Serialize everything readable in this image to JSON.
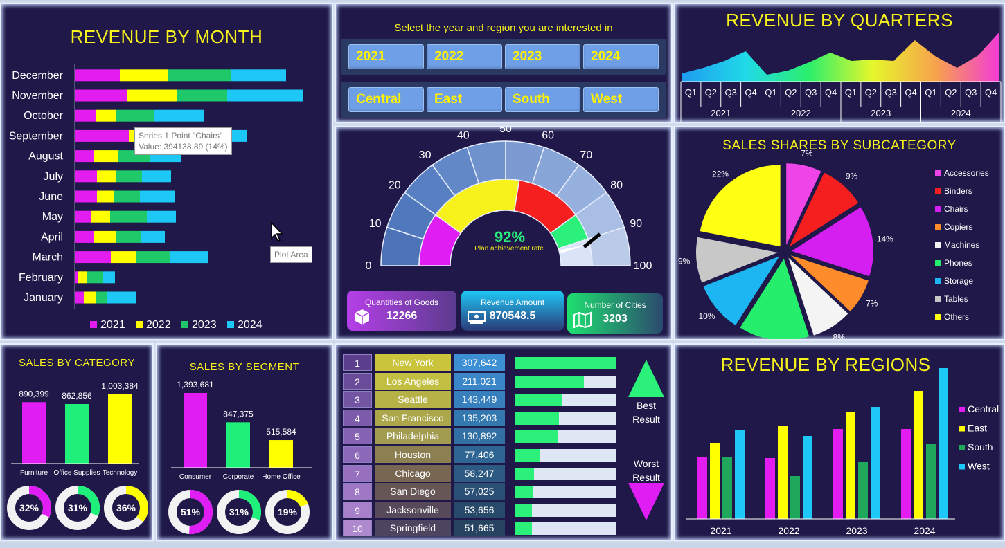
{
  "month_panel": {
    "title": "REVENUE BY MONTH",
    "tooltip_line1": "Series 1 Point \"Chairs\"",
    "tooltip_line2": "Value: 394138.89 (14%)",
    "plot_area_tip": "Plot Area"
  },
  "filters": {
    "prompt": "Select the year and region you are interested in",
    "years": [
      "2021",
      "2022",
      "2023",
      "2024"
    ],
    "regions": [
      "Central",
      "East",
      "South",
      "West"
    ]
  },
  "quarters_panel": {
    "title": "REVENUE BY QUARTERS",
    "quarter_labels": [
      "Q1",
      "Q2",
      "Q3",
      "Q4"
    ],
    "years": [
      "2021",
      "2022",
      "2023",
      "2024"
    ]
  },
  "gauge": {
    "ticks": [
      "0",
      "10",
      "20",
      "30",
      "40",
      "50",
      "60",
      "70",
      "80",
      "90",
      "100"
    ],
    "value_text": "92%",
    "caption": "Plan achievement rate",
    "value": 92
  },
  "kpis": {
    "qty_label": "Quantities of Goods",
    "qty_value": "12266",
    "rev_label": "Revenue Amount",
    "rev_value": "870548.5",
    "cities_label": "Number of Cities",
    "cities_value": "3203"
  },
  "subcat_panel": {
    "title": "SALES SHARES BY SUBCATEGORY"
  },
  "category_panel": {
    "title": "SALES BY CATEGORY",
    "donuts": [
      "32%",
      "31%",
      "36%"
    ]
  },
  "segment_panel": {
    "title": "SALES BY SEGMENT",
    "donuts": [
      "51%",
      "31%",
      "19%"
    ]
  },
  "cities_panel": {
    "rows": [
      {
        "rank": "1",
        "city": "New York",
        "value": "307,642",
        "pct": 1.0
      },
      {
        "rank": "2",
        "city": "Los Angeles",
        "value": "211,021",
        "pct": 0.686
      },
      {
        "rank": "3",
        "city": "Seattle",
        "value": "143,449",
        "pct": 0.466
      },
      {
        "rank": "4",
        "city": "San Francisco",
        "value": "135,203",
        "pct": 0.44
      },
      {
        "rank": "5",
        "city": "Philadelphia",
        "value": "130,892",
        "pct": 0.425
      },
      {
        "rank": "6",
        "city": "Houston",
        "value": "77,406",
        "pct": 0.252
      },
      {
        "rank": "7",
        "city": "Chicago",
        "value": "58,247",
        "pct": 0.189
      },
      {
        "rank": "8",
        "city": "San Diego",
        "value": "57,025",
        "pct": 0.185
      },
      {
        "rank": "9",
        "city": "Jacksonville",
        "value": "53,656",
        "pct": 0.174
      },
      {
        "rank": "10",
        "city": "Springfield",
        "value": "51,665",
        "pct": 0.168
      }
    ],
    "best_label_1": "Best",
    "best_label_2": "Result",
    "worst_label_1": "Worst",
    "worst_label_2": "Result"
  },
  "regions_panel": {
    "title": "REVENUE BY REGIONS"
  },
  "chart_data": [
    {
      "type": "bar",
      "orientation": "horizontal-stacked",
      "title": "REVENUE BY MONTH",
      "categories": [
        "January",
        "February",
        "March",
        "April",
        "May",
        "June",
        "July",
        "August",
        "September",
        "October",
        "November",
        "December"
      ],
      "series": [
        {
          "name": "2021",
          "color": "#e31cf0",
          "values": [
            13,
            5,
            52,
            27,
            23,
            32,
            32,
            27,
            78,
            30,
            75,
            65
          ]
        },
        {
          "name": "2022",
          "color": "#ffff00",
          "values": [
            18,
            13,
            37,
            33,
            28,
            24,
            28,
            35,
            20,
            30,
            72,
            70
          ]
        },
        {
          "name": "2023",
          "color": "#1fc96a",
          "values": [
            15,
            22,
            48,
            35,
            53,
            38,
            37,
            46,
            60,
            55,
            73,
            90
          ]
        },
        {
          "name": "2024",
          "color": "#1ec8f6",
          "values": [
            42,
            18,
            55,
            35,
            42,
            50,
            42,
            45,
            90,
            72,
            110,
            80
          ]
        }
      ]
    },
    {
      "type": "area",
      "title": "REVENUE BY QUARTERS",
      "categories": [
        "2021 Q1",
        "2021 Q2",
        "2021 Q3",
        "2021 Q4",
        "2022 Q1",
        "2022 Q2",
        "2022 Q3",
        "2022 Q4",
        "2023 Q1",
        "2023 Q2",
        "2023 Q3",
        "2023 Q4",
        "2024 Q1",
        "2024 Q2",
        "2024 Q3",
        "2024 Q4"
      ],
      "values": [
        12,
        20,
        30,
        44,
        10,
        16,
        28,
        42,
        30,
        32,
        30,
        60,
        36,
        20,
        38,
        72
      ]
    },
    {
      "type": "pie",
      "title": "SALES SHARES BY SUBCATEGORY",
      "slices": [
        {
          "label": "Accessories",
          "value": 7,
          "color": "#ee44e8"
        },
        {
          "label": "Binders",
          "value": 9,
          "color": "#f51f1f"
        },
        {
          "label": "Chairs",
          "value": 14,
          "color": "#d51ff0"
        },
        {
          "label": "Copiers",
          "value": 7,
          "color": "#ff8c2a"
        },
        {
          "label": "Machines",
          "value": 8,
          "color": "#f4f4f4"
        },
        {
          "label": "Phones",
          "value": 14,
          "color": "#24ee6c"
        },
        {
          "label": "Storage",
          "value": 10,
          "color": "#1eb5f3"
        },
        {
          "label": "Tables",
          "value": 9,
          "color": "#c8c8c8"
        },
        {
          "label": "Others",
          "value": 22,
          "color": "#ffff14"
        }
      ]
    },
    {
      "type": "bar",
      "title": "SALES BY CATEGORY",
      "categories": [
        "Furniture",
        "Office Supplies",
        "Technology"
      ],
      "values": [
        890399,
        862856,
        1003384
      ],
      "labels": [
        "890,399",
        "862,856",
        "1,003,384"
      ],
      "colors": [
        "#e01ef4",
        "#1ef079",
        "#ffff00"
      ]
    },
    {
      "type": "bar",
      "title": "SALES BY SEGMENT",
      "categories": [
        "Consumer",
        "Corporate",
        "Home Office"
      ],
      "values": [
        1393681,
        847375,
        515584
      ],
      "labels": [
        "1,393,681",
        "847,375",
        "515,584"
      ],
      "colors": [
        "#e01ef4",
        "#1ef079",
        "#ffff00"
      ]
    },
    {
      "type": "bar",
      "title": "REVENUE BY REGIONS",
      "categories": [
        "2021",
        "2022",
        "2023",
        "2024"
      ],
      "series": [
        {
          "name": "Central",
          "color": "#e31cf0",
          "values": [
            90,
            88,
            130,
            130
          ]
        },
        {
          "name": "East",
          "color": "#ffff00",
          "values": [
            110,
            135,
            155,
            185
          ]
        },
        {
          "name": "South",
          "color": "#1fa85c",
          "values": [
            90,
            62,
            82,
            108
          ]
        },
        {
          "name": "West",
          "color": "#1ec8f6",
          "values": [
            128,
            120,
            162,
            218
          ]
        }
      ]
    }
  ]
}
